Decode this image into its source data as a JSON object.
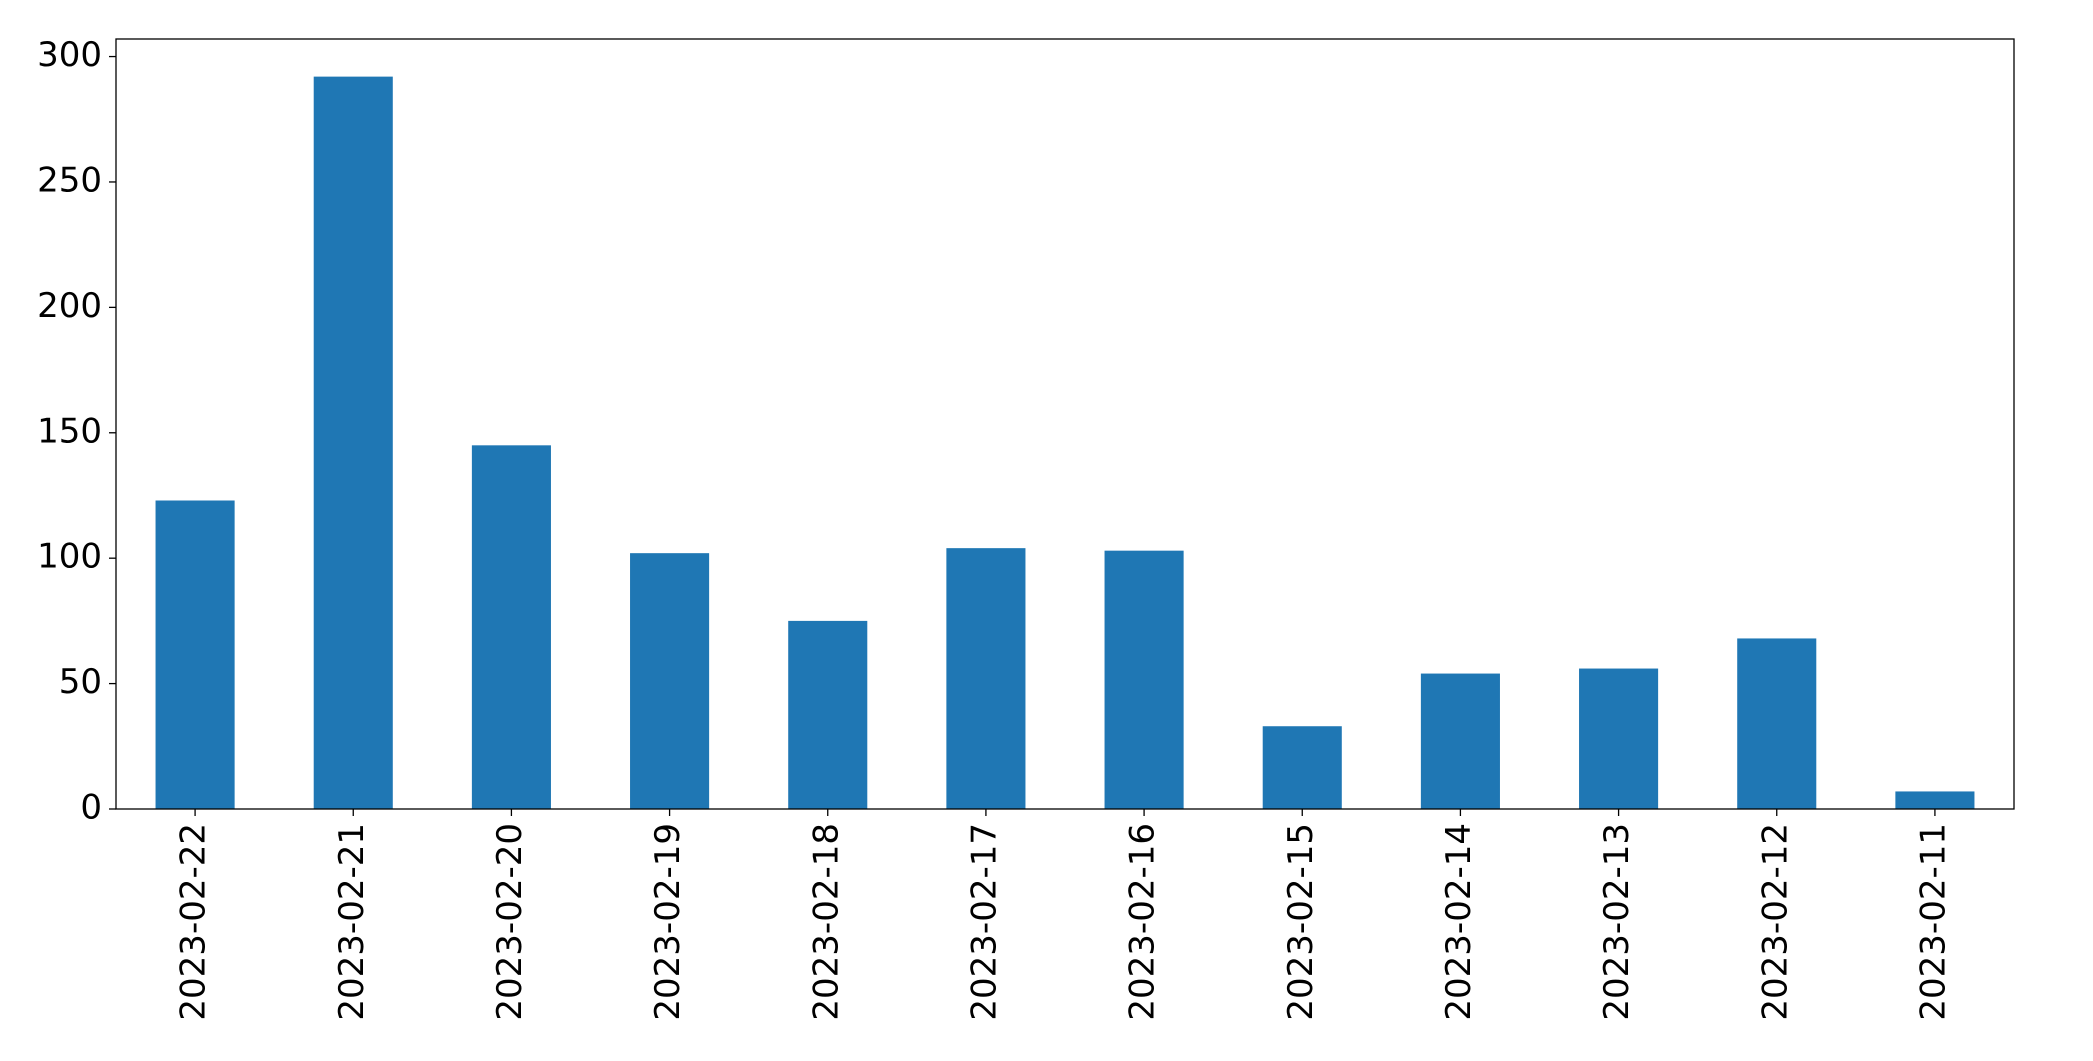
{
  "chart_data": {
    "type": "bar",
    "categories": [
      "2023-02-22",
      "2023-02-21",
      "2023-02-20",
      "2023-02-19",
      "2023-02-18",
      "2023-02-17",
      "2023-02-16",
      "2023-02-15",
      "2023-02-14",
      "2023-02-13",
      "2023-02-12",
      "2023-02-11"
    ],
    "values": [
      123,
      292,
      145,
      102,
      75,
      104,
      103,
      33,
      54,
      56,
      68,
      7
    ],
    "color": "#1f77b4",
    "ylim": [
      0,
      307
    ],
    "yticks": [
      0,
      50,
      100,
      150,
      200,
      250,
      300
    ],
    "grid": false
  }
}
